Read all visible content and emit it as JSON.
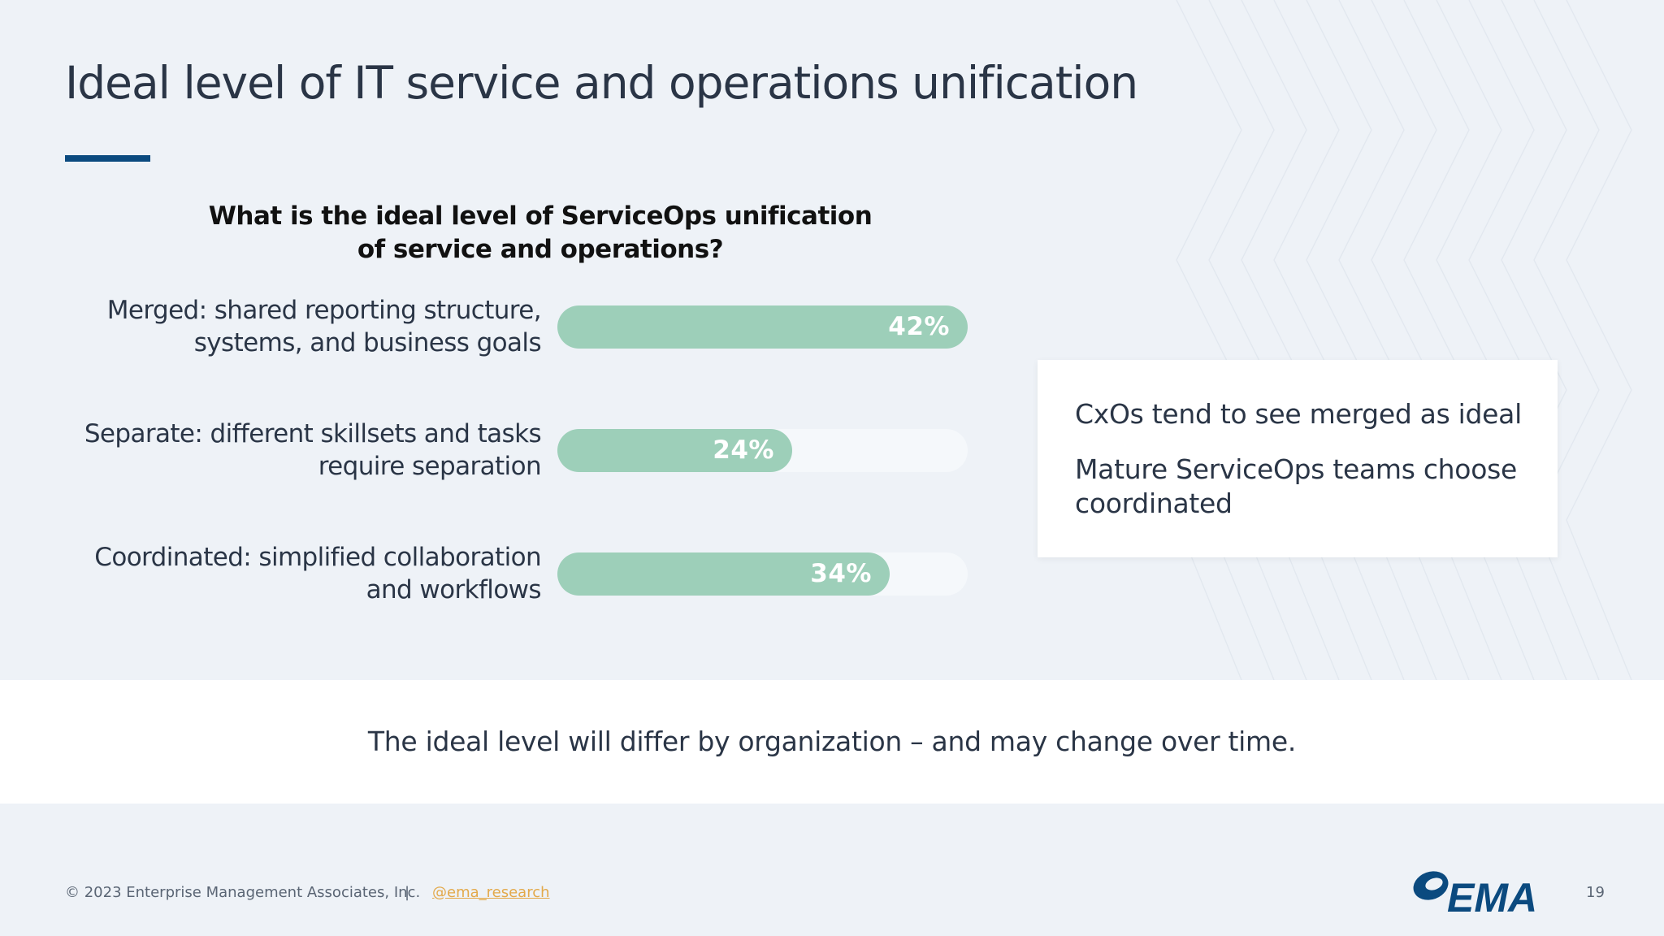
{
  "slide": {
    "title": "Ideal level of IT service and operations unification",
    "accent_color": "#0b4a7f"
  },
  "chart_data": {
    "type": "bar",
    "orientation": "horizontal",
    "title_lines": [
      "What is the ideal level of ServiceOps unification",
      "of service and operations?"
    ],
    "categories": [
      [
        "Merged: shared reporting structure,",
        "systems, and business goals"
      ],
      [
        "Separate: different skillsets and tasks",
        "require separation"
      ],
      [
        "Coordinated: simplified collaboration",
        "and workflows"
      ]
    ],
    "values": [
      42,
      24,
      34
    ],
    "value_labels": [
      "42%",
      "24%",
      "34%"
    ],
    "unit": "%",
    "xlim": [
      0,
      42
    ],
    "bar_color": "#9dcfb9",
    "track_color": "#f5f8fb"
  },
  "callout": {
    "line1": "CxOs tend to see merged as ideal",
    "line2": "Mature ServiceOps teams choose coordinated"
  },
  "band": {
    "text": "The ideal level will differ by organization – and may change over time."
  },
  "footer": {
    "copyright": "© 2023 Enterprise Management Associates, Inc.",
    "separator": "|",
    "handle": "@ema_research",
    "logo_text": "EMA",
    "page_number": "19"
  }
}
